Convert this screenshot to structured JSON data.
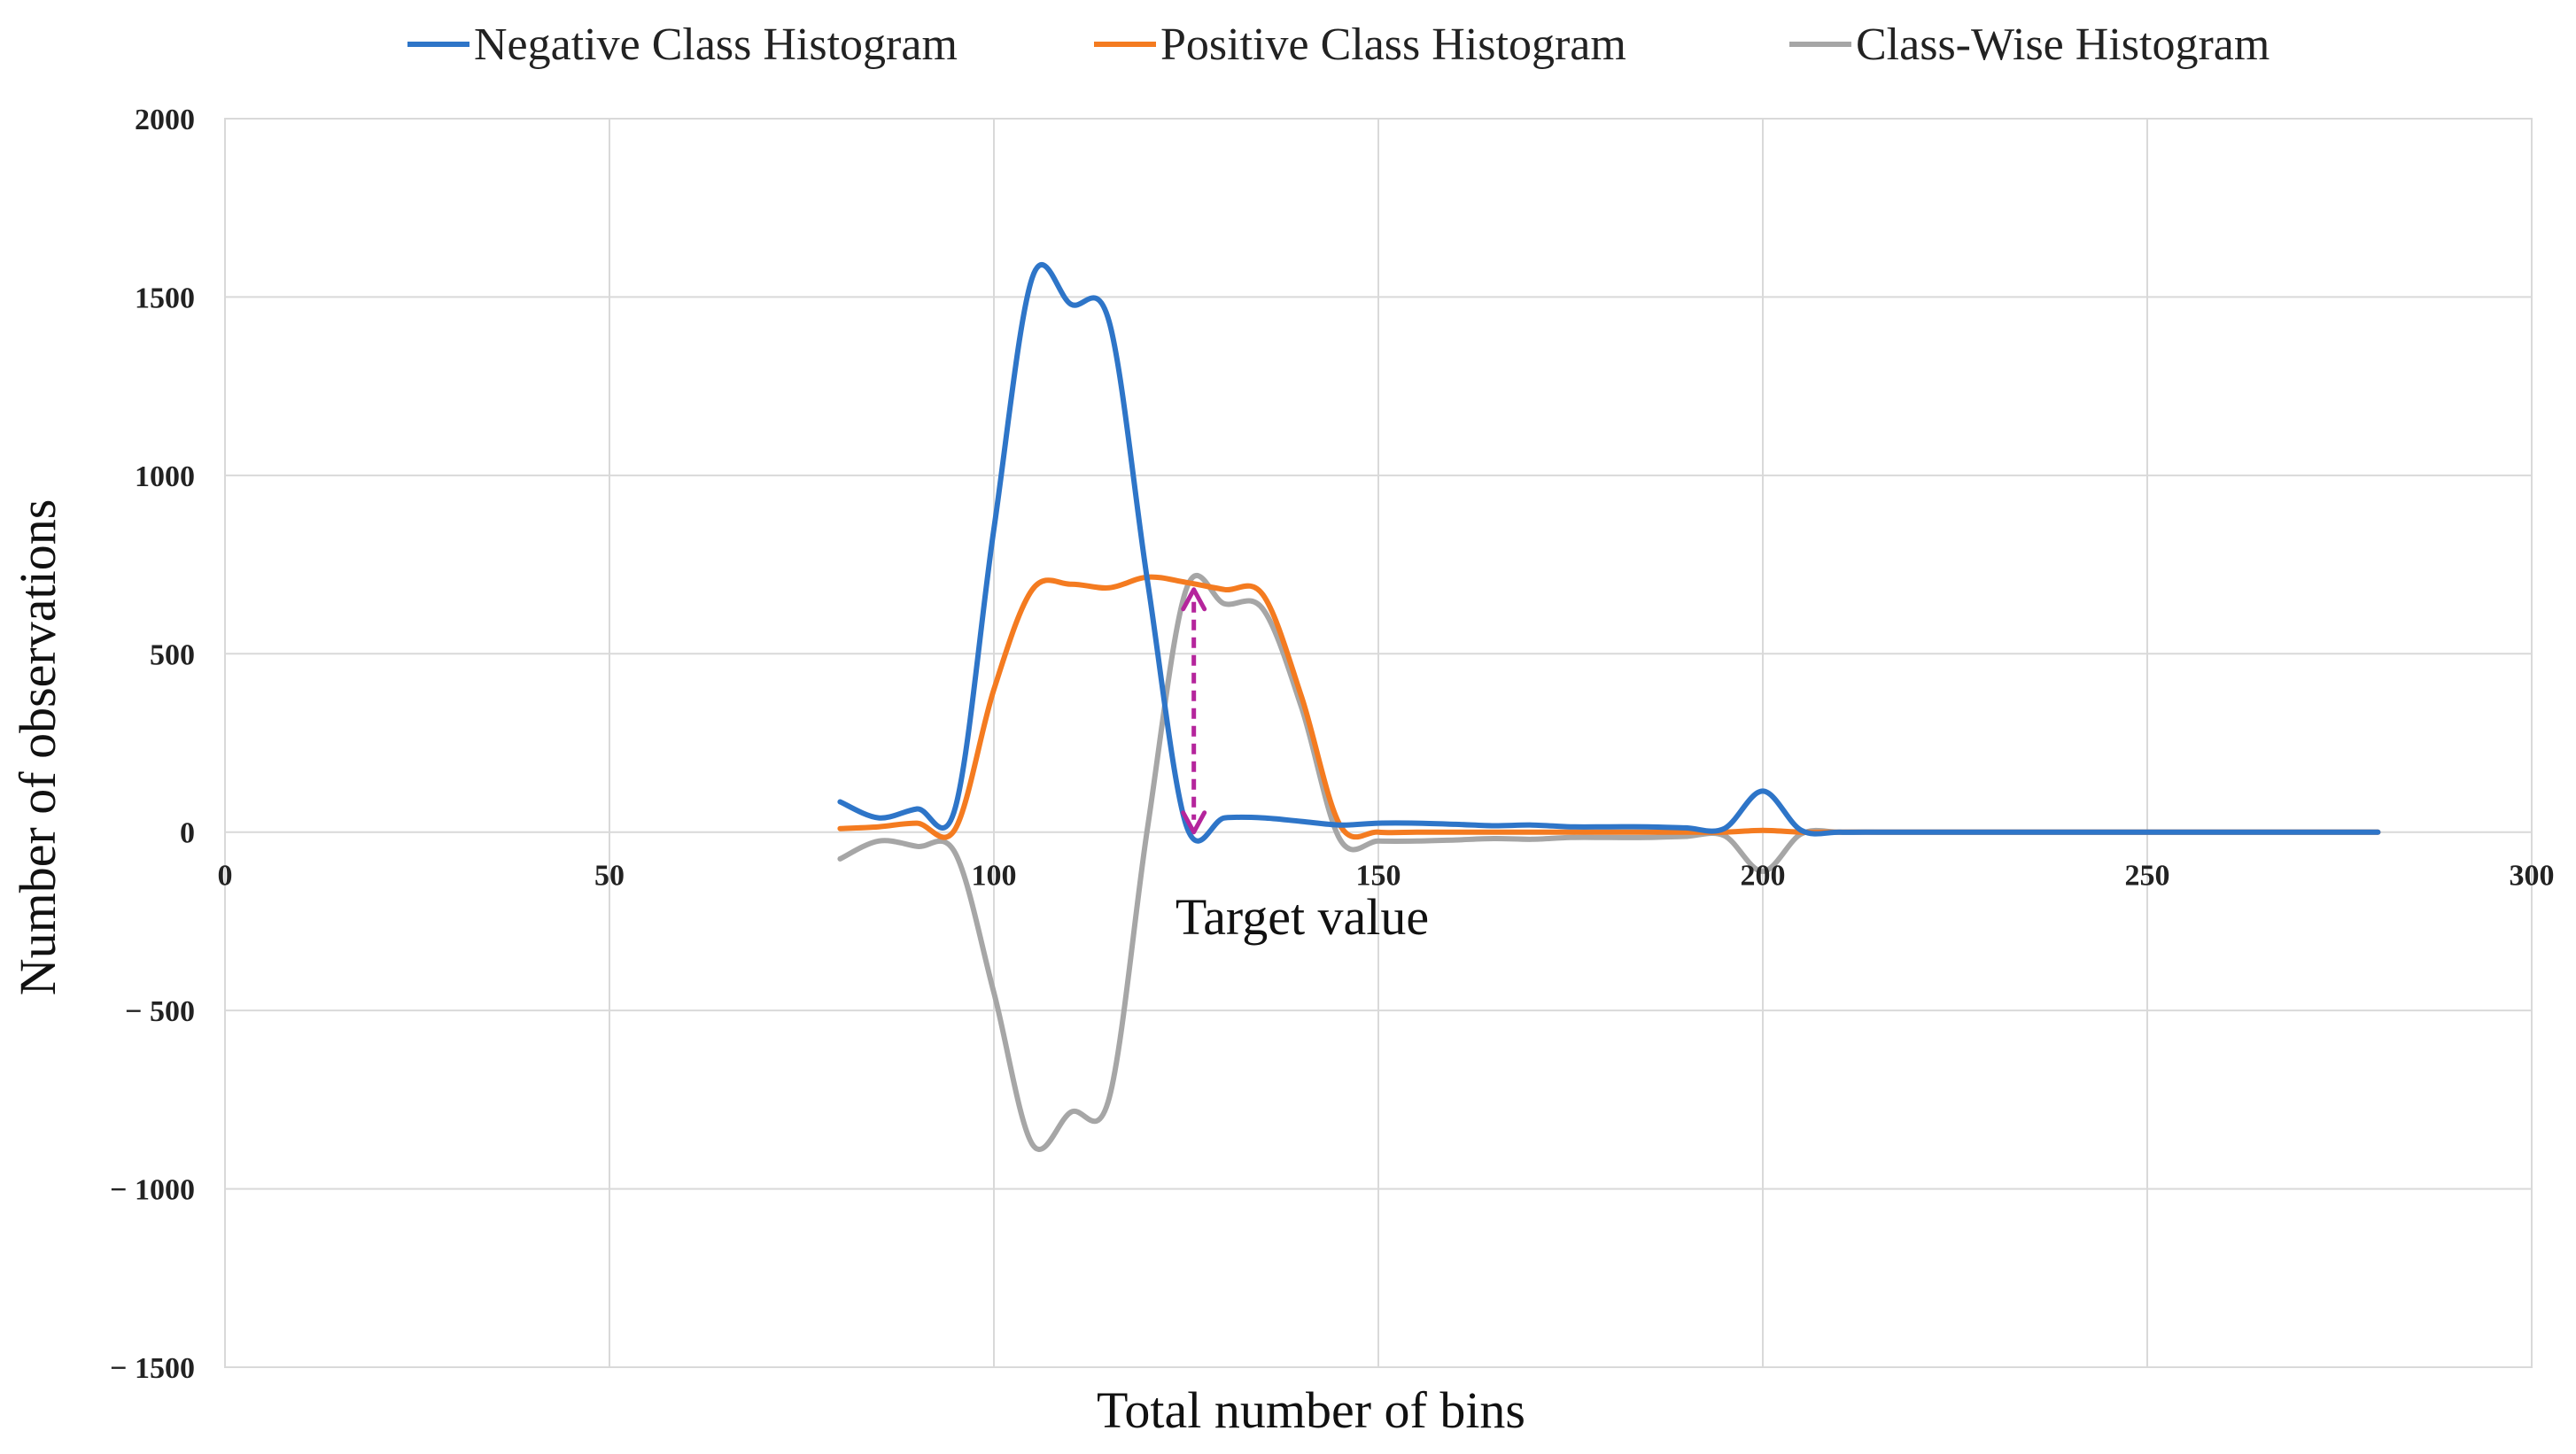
{
  "chart_data": {
    "type": "line",
    "title": "",
    "xlabel": "Total number of bins",
    "ylabel": "Number of observations",
    "annotation": "Target value",
    "xlim": [
      0,
      300
    ],
    "ylim": [
      -1500,
      2000
    ],
    "xticks": [
      0,
      50,
      100,
      150,
      200,
      250,
      300
    ],
    "yticks": [
      2000,
      1500,
      1000,
      500,
      0,
      -500,
      -1000,
      -1500
    ],
    "ytick_labels": [
      "2000",
      "1500",
      "1000",
      "500",
      "0",
      "− 500",
      "− 1000",
      "− 1500"
    ],
    "grid": true,
    "legend_position": "top",
    "series": [
      {
        "name": "Negative Class Histogram",
        "color": "#2e75c8",
        "x": [
          80,
          85,
          90,
          95,
          100,
          105,
          110,
          115,
          120,
          125,
          130,
          135,
          140,
          145,
          150,
          155,
          160,
          165,
          170,
          175,
          180,
          185,
          190,
          195,
          200,
          205,
          210,
          215,
          220,
          230,
          240,
          250,
          260,
          270,
          280
        ],
        "y": [
          85,
          40,
          65,
          70,
          850,
          1555,
          1480,
          1430,
          700,
          20,
          40,
          40,
          30,
          20,
          25,
          25,
          22,
          18,
          20,
          15,
          15,
          15,
          12,
          10,
          115,
          5,
          0,
          0,
          0,
          0,
          0,
          0,
          0,
          0,
          0
        ]
      },
      {
        "name": "Positive Class Histogram",
        "color": "#f47b20",
        "x": [
          80,
          85,
          90,
          95,
          100,
          105,
          110,
          115,
          120,
          125,
          130,
          135,
          140,
          145,
          150,
          155,
          160,
          165,
          170,
          175,
          180,
          185,
          190,
          195,
          200,
          205,
          210,
          215,
          220,
          230,
          240,
          250,
          260,
          270,
          280
        ],
        "y": [
          10,
          15,
          25,
          10,
          400,
          680,
          695,
          685,
          715,
          700,
          680,
          665,
          380,
          20,
          0,
          0,
          0,
          0,
          0,
          0,
          0,
          0,
          0,
          0,
          5,
          0,
          0,
          0,
          0,
          0,
          0,
          0,
          0,
          0,
          0
        ]
      },
      {
        "name": "Class-Wise Histogram",
        "color": "#a6a6a6",
        "x": [
          80,
          85,
          90,
          95,
          100,
          105,
          110,
          115,
          120,
          125,
          130,
          135,
          140,
          145,
          150,
          155,
          160,
          165,
          170,
          175,
          180,
          185,
          190,
          195,
          200,
          205,
          210,
          215,
          220,
          230,
          240,
          250,
          260,
          270,
          280
        ],
        "y": [
          -75,
          -25,
          -40,
          -60,
          -450,
          -875,
          -785,
          -745,
          15,
          680,
          640,
          625,
          350,
          -20,
          -25,
          -25,
          -22,
          -18,
          -20,
          -15,
          -15,
          -15,
          -12,
          -10,
          -110,
          -5,
          0,
          0,
          0,
          0,
          0,
          0,
          0,
          0,
          0
        ]
      }
    ],
    "arrow": {
      "color": "#b5259c",
      "x": 126,
      "y_start": 680,
      "y_end": 0
    }
  }
}
